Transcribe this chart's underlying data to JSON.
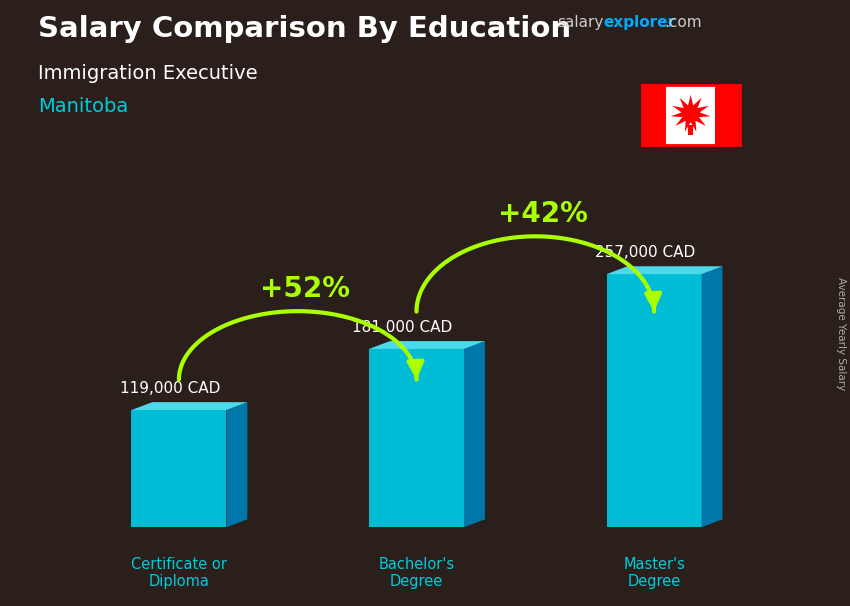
{
  "title": "Salary Comparison By Education",
  "subtitle": "Immigration Executive",
  "location": "Manitoba",
  "categories": [
    "Certificate or\nDiploma",
    "Bachelor's\nDegree",
    "Master's\nDegree"
  ],
  "values": [
    119000,
    181000,
    257000
  ],
  "labels": [
    "119,000 CAD",
    "181,000 CAD",
    "257,000 CAD"
  ],
  "bar_face_color": "#00bcd4",
  "bar_side_color": "#0077aa",
  "bar_top_color": "#4dd9ec",
  "pct_labels": [
    "+52%",
    "+42%"
  ],
  "pct_color": "#aaff00",
  "bg_color": "#2a1f1a",
  "title_color": "#ffffff",
  "subtitle_color": "#ffffff",
  "location_color": "#00ccdd",
  "label_color": "#ffffff",
  "ylabel_text": "Average Yearly Salary",
  "cat_color": "#00ccdd",
  "brand_salary_color": "#cccccc",
  "brand_explorer_color": "#00aaff",
  "brand_com_color": "#cccccc",
  "ylim": [
    0,
    320000
  ],
  "positions": [
    1.0,
    2.3,
    3.6
  ],
  "bar_width": 0.52
}
